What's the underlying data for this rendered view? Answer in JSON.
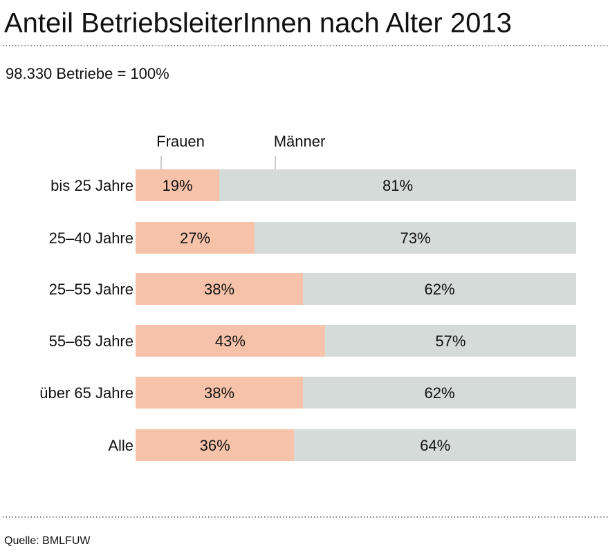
{
  "chart_data": {
    "type": "stacked-bar-horizontal",
    "title": "Anteil BetriebsleiterInnen nach Alter 2013",
    "subtitle": "98.330 Betriebe = 100%",
    "source": "Quelle: BMLFUW",
    "categories": [
      "bis 25 Jahre",
      "25–40 Jahre",
      "25–55 Jahre",
      "55–65 Jahre",
      "über 65 Jahre",
      "Alle"
    ],
    "series": [
      {
        "name": "Frauen",
        "color": "#f6c3aa",
        "values": [
          19,
          27,
          38,
          43,
          38,
          36
        ],
        "value_labels": [
          "19%",
          "27%",
          "38%",
          "43%",
          "38%",
          "36%"
        ]
      },
      {
        "name": "Männer",
        "color": "#d5dbd9",
        "values": [
          81,
          73,
          62,
          57,
          62,
          64
        ],
        "value_labels": [
          "81%",
          "73%",
          "62%",
          "57%",
          "62%",
          "64%"
        ]
      }
    ],
    "title_color": "#17629a"
  }
}
